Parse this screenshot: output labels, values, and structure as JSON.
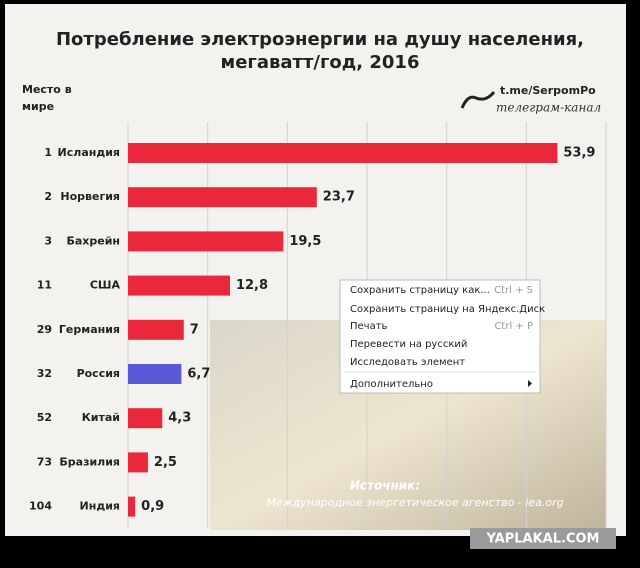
{
  "chart_data": {
    "type": "hbar",
    "title": [
      "Потребление электроэнергии на душу населения,",
      "мегаватт/год, 2016"
    ],
    "y_label": [
      "Место в",
      "мире"
    ],
    "ranks": [
      "1",
      "2",
      "3",
      "11",
      "29",
      "32",
      "52",
      "73",
      "104"
    ],
    "categories": [
      "Исландия",
      "Норвегия",
      "Бахрейн",
      "США",
      "Германия",
      "Россия",
      "Китай",
      "Бразилия",
      "Индия"
    ],
    "values": [
      53.9,
      23.7,
      19.5,
      12.8,
      7,
      6.7,
      4.3,
      2.5,
      0.9
    ],
    "value_labels": [
      "53,9",
      "23,7",
      "19,5",
      "12,8",
      "7",
      "6,7",
      "4,3",
      "2,5",
      "0,9"
    ],
    "colors": [
      "#e9283b",
      "#e9283b",
      "#e9283b",
      "#e9283b",
      "#e9283b",
      "#5a5ad8",
      "#e9283b",
      "#e9283b",
      "#e9283b"
    ],
    "xlim": [
      0,
      60
    ],
    "xticks": [
      0,
      10,
      20,
      30,
      40,
      50,
      60
    ],
    "grid": true
  },
  "watermark": {
    "link": "t.me/SerpomPo",
    "caption": "телеграм-канал"
  },
  "source": {
    "label": "Источник:",
    "text": "Международное энергетическое агенство - iea.org"
  },
  "context_menu": {
    "items": [
      {
        "label": "Сохранить страницу как...",
        "shortcut": "Ctrl + S"
      },
      {
        "label": "Сохранить страницу на Яндекс.Диск"
      },
      {
        "label": "Печать",
        "shortcut": "Ctrl + P"
      },
      {
        "label": "Перевести на русский"
      },
      {
        "label": "Исследовать элемент"
      },
      {
        "label": "Дополнительно"
      }
    ]
  },
  "footer": "YAPLAKAL.COM"
}
